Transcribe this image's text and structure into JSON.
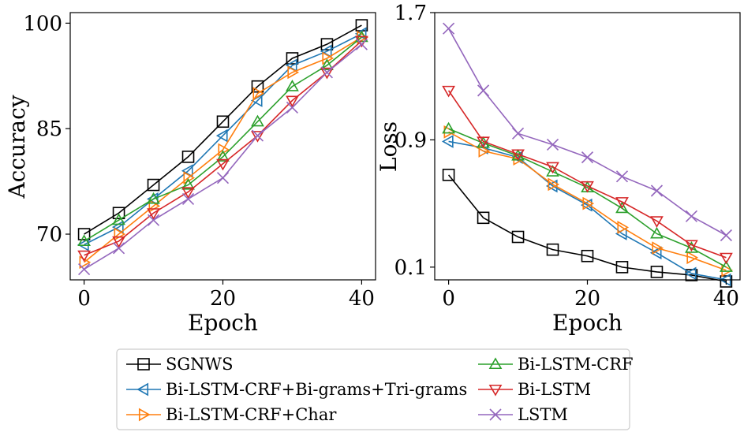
{
  "chart_data": [
    {
      "type": "line",
      "xlabel": "Epoch",
      "ylabel": "Accuracy",
      "xlim": [
        -2,
        42
      ],
      "ylim": [
        63.5,
        101.5
      ],
      "xticks": [
        0,
        20,
        40
      ],
      "yticks": [
        70,
        85,
        100
      ],
      "xtick_labels": [
        "0",
        "20",
        "40"
      ],
      "ytick_labels": [
        "70",
        "85",
        "100"
      ],
      "x": [
        0,
        5,
        10,
        15,
        20,
        25,
        30,
        35,
        40
      ],
      "series": [
        {
          "name": "SGNWS",
          "color": "#000000",
          "marker": "square",
          "values": [
            70,
            73,
            77,
            81,
            86,
            91,
            95,
            97,
            99.7
          ]
        },
        {
          "name": "Bi-LSTM-CRF+Bi-grams+Tri-grams",
          "color": "#1f77b4",
          "marker": "triangle-left",
          "values": [
            68.5,
            71,
            75,
            79,
            84,
            89,
            94,
            96,
            98.5
          ]
        },
        {
          "name": "Bi-LSTM-CRF+Char",
          "color": "#ff7f0e",
          "marker": "triangle-right",
          "values": [
            66,
            70,
            74,
            78,
            82,
            90,
            93,
            95,
            98
          ]
        },
        {
          "name": "Bi-LSTM-CRF",
          "color": "#2ca02c",
          "marker": "triangle-up",
          "values": [
            69,
            72,
            75,
            77,
            81,
            86,
            91,
            94,
            98
          ]
        },
        {
          "name": "Bi-LSTM",
          "color": "#d62728",
          "marker": "triangle-down",
          "values": [
            67,
            69,
            73,
            76,
            80,
            84,
            89,
            93,
            97.5
          ]
        },
        {
          "name": "LSTM",
          "color": "#9467bd",
          "marker": "x",
          "values": [
            65,
            68,
            72,
            75,
            78,
            84,
            88,
            93,
            97
          ]
        }
      ]
    },
    {
      "type": "line",
      "xlabel": "Epoch",
      "ylabel": "Loss",
      "xlim": [
        -2,
        42
      ],
      "ylim": [
        0.02,
        1.7
      ],
      "xticks": [
        0,
        20,
        40
      ],
      "yticks": [
        0.1,
        0.9,
        1.7
      ],
      "xtick_labels": [
        "0",
        "20",
        "40"
      ],
      "ytick_labels": [
        "0.1",
        "0.9",
        "1.7"
      ],
      "x": [
        0,
        5,
        10,
        15,
        20,
        25,
        30,
        35,
        40
      ],
      "series": [
        {
          "name": "SGNWS",
          "color": "#000000",
          "marker": "square",
          "values": [
            0.68,
            0.41,
            0.29,
            0.21,
            0.17,
            0.1,
            0.07,
            0.05,
            0.01
          ]
        },
        {
          "name": "Bi-LSTM-CRF+Bi-grams+Tri-grams",
          "color": "#1f77b4",
          "marker": "triangle-left",
          "values": [
            0.89,
            0.85,
            0.79,
            0.61,
            0.49,
            0.31,
            0.19,
            0.06,
            0.02
          ]
        },
        {
          "name": "Bi-LSTM-CRF+Char",
          "color": "#ff7f0e",
          "marker": "triangle-right",
          "values": [
            0.95,
            0.83,
            0.78,
            0.62,
            0.5,
            0.35,
            0.22,
            0.16,
            0.08
          ]
        },
        {
          "name": "Bi-LSTM-CRF",
          "color": "#2ca02c",
          "marker": "triangle-up",
          "values": [
            0.97,
            0.88,
            0.8,
            0.7,
            0.6,
            0.47,
            0.31,
            0.22,
            0.1
          ]
        },
        {
          "name": "Bi-LSTM",
          "color": "#d62728",
          "marker": "triangle-down",
          "values": [
            1.21,
            0.89,
            0.81,
            0.73,
            0.61,
            0.51,
            0.39,
            0.24,
            0.16
          ]
        },
        {
          "name": "LSTM",
          "color": "#9467bd",
          "marker": "x",
          "values": [
            1.6,
            1.21,
            0.94,
            0.87,
            0.79,
            0.67,
            0.58,
            0.42,
            0.3
          ]
        }
      ]
    }
  ],
  "legend": {
    "placement": "bottom-center",
    "columns": 2,
    "entries": [
      {
        "label": "SGNWS",
        "series_index": 0
      },
      {
        "label": "Bi-LSTM-CRF+Bi-grams+Tri-grams",
        "series_index": 1
      },
      {
        "label": "Bi-LSTM-CRF+Char",
        "series_index": 2
      },
      {
        "label": "Bi-LSTM-CRF",
        "series_index": 3
      },
      {
        "label": "Bi-LSTM",
        "series_index": 4
      },
      {
        "label": "LSTM",
        "series_index": 5
      }
    ]
  }
}
